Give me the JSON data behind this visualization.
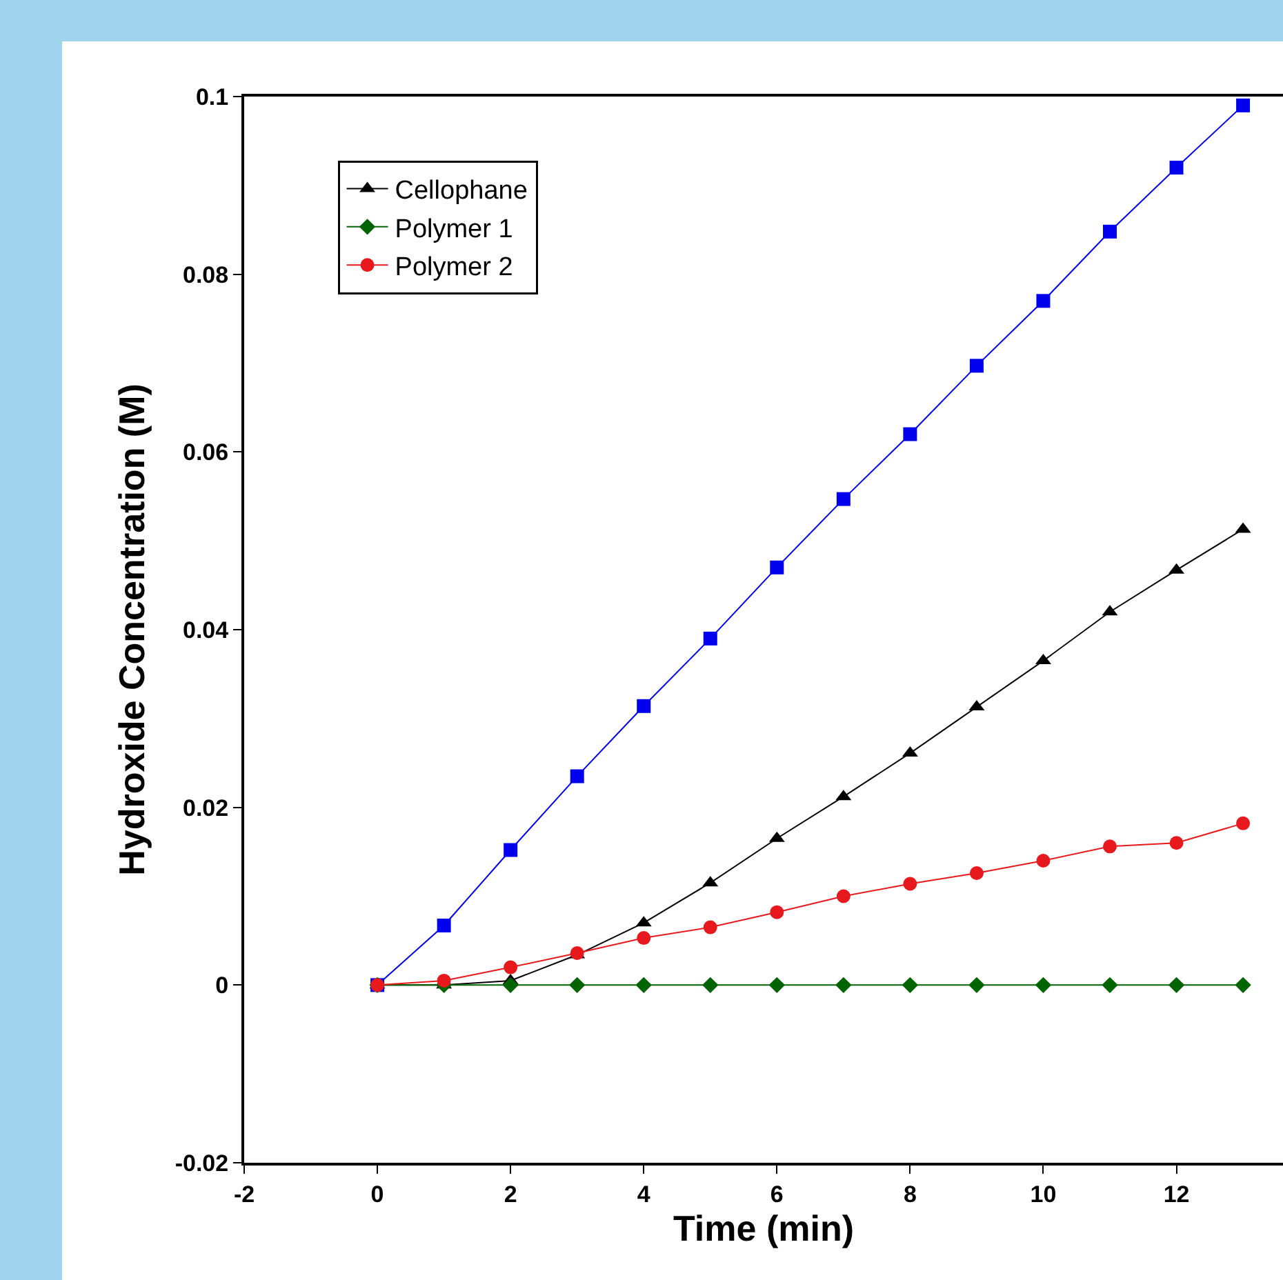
{
  "chart_data": {
    "type": "line",
    "xlabel": "Time (min)",
    "ylabel": "Hydroxide Concentration (M)",
    "x": [
      0,
      1,
      2,
      3,
      4,
      5,
      6,
      7,
      8,
      9,
      10,
      11,
      12,
      13
    ],
    "xlim": [
      -2,
      13.6
    ],
    "xticks": [
      -2,
      0,
      2,
      4,
      6,
      8,
      10,
      12
    ],
    "ylim": [
      -0.02,
      0.1
    ],
    "yticks": [
      -0.02,
      0,
      0.02,
      0.04,
      0.06,
      0.08,
      0.1
    ],
    "grid": false,
    "legend": "top left",
    "line_style": "solid",
    "series": [
      {
        "name": "Cellophane",
        "color": "#000000",
        "marker": "triangle",
        "values": [
          0,
          0,
          0.0005,
          0.0034,
          0.007,
          0.0115,
          0.0165,
          0.0212,
          0.0261,
          0.0313,
          0.0365,
          0.042,
          0.0467,
          0.0513
        ]
      },
      {
        "color": "#0000ee",
        "marker": "square",
        "values": [
          0,
          0.0067,
          0.0152,
          0.0235,
          0.0314,
          0.039,
          0.047,
          0.0547,
          0.062,
          0.0697,
          0.077,
          0.0848,
          0.092,
          0.099
        ]
      },
      {
        "name": "Polymer 1",
        "color": "#006400",
        "marker": "diamond",
        "values": [
          0,
          0,
          0,
          0,
          0,
          0,
          0,
          0,
          0,
          0,
          0,
          0,
          0,
          0
        ]
      },
      {
        "name": "Polymer 2",
        "color": "#e8191d",
        "marker": "circle",
        "values": [
          0,
          0.0005,
          0.002,
          0.0036,
          0.0053,
          0.0065,
          0.0082,
          0.01,
          0.0114,
          0.0126,
          0.014,
          0.0156,
          0.016,
          0.0182
        ]
      }
    ]
  }
}
